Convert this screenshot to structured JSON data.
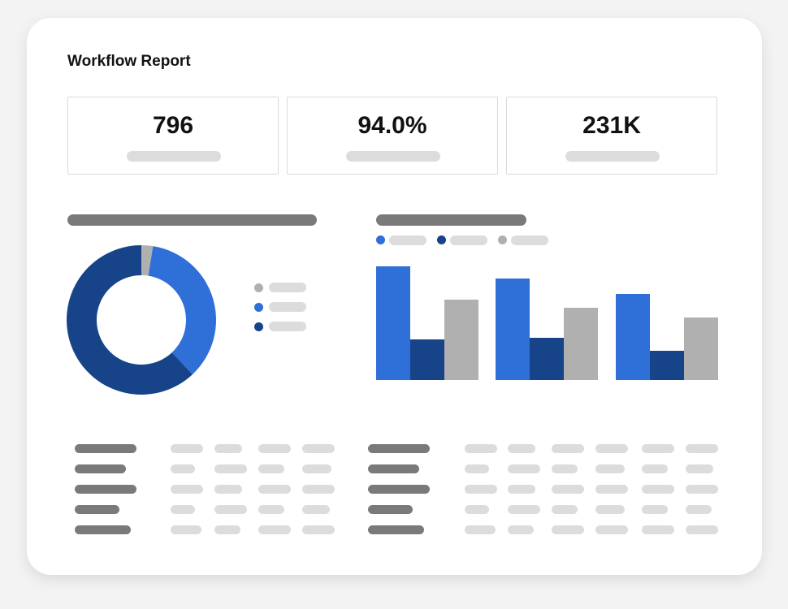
{
  "report": {
    "title": "Workflow Report"
  },
  "stats": [
    {
      "value": "796"
    },
    {
      "value": "94.0%"
    },
    {
      "value": "231K"
    }
  ],
  "colors": {
    "blue": "#2f6fd8",
    "navy": "#174489",
    "gray": "#b0b0b0",
    "placeholder_dark": "#7a7a7a",
    "placeholder_light": "#dcdcdc"
  },
  "donut": {
    "slices": [
      {
        "series": "gray",
        "value": 2.5
      },
      {
        "series": "blue",
        "value": 35.5
      },
      {
        "series": "navy",
        "value": 62.0
      }
    ]
  },
  "legend_donut": [
    "gray",
    "blue",
    "navy"
  ],
  "legend_bars": [
    "blue",
    "navy",
    "gray"
  ],
  "bars": {
    "groups": [
      {
        "blue": 140,
        "navy": 50,
        "gray": 99
      },
      {
        "blue": 125,
        "navy": 52,
        "gray": 89
      },
      {
        "blue": 106,
        "navy": 36,
        "gray": 77
      }
    ]
  },
  "table_left": {
    "rows": 5,
    "cols": 4
  },
  "table_right": {
    "rows": 5,
    "cols": 6
  }
}
